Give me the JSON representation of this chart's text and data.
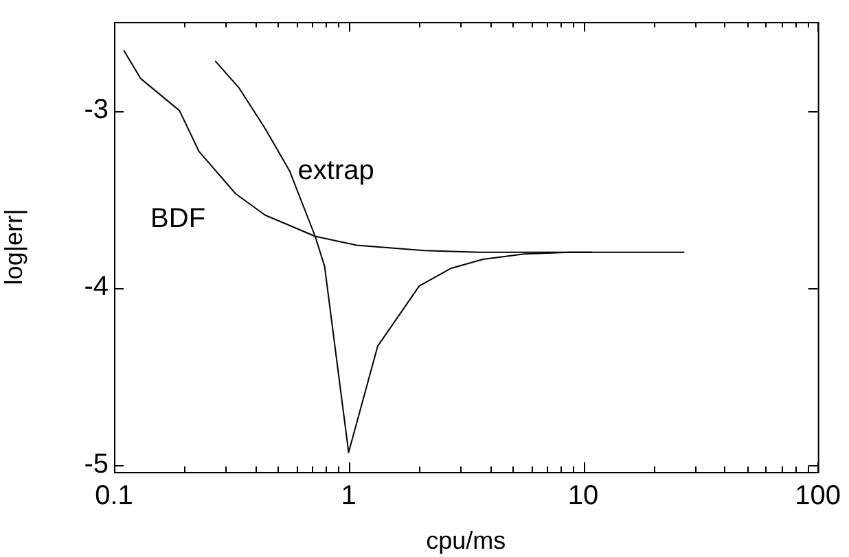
{
  "chart_data": {
    "type": "line",
    "xlabel": "cpu/ms",
    "ylabel": "log|err|",
    "log": "x",
    "grid": false,
    "legend": false,
    "marker": "none",
    "line_style": "solid",
    "xlim": [
      0.1,
      100
    ],
    "ylim": [
      -5.04,
      -2.5
    ],
    "xticks": [
      0.1,
      {
        "value": 0.2,
        "label": null
      },
      {
        "value": 0.3,
        "label": null
      },
      {
        "value": 0.4,
        "label": null
      },
      {
        "value": 0.5,
        "label": null
      },
      {
        "value": 0.6,
        "label": null
      },
      {
        "value": 0.7,
        "label": null
      },
      {
        "value": 0.8,
        "label": null
      },
      {
        "value": 0.9,
        "label": null
      },
      1,
      {
        "value": 2,
        "label": null
      },
      {
        "value": 3,
        "label": null
      },
      {
        "value": 4,
        "label": null
      },
      {
        "value": 5,
        "label": null
      },
      {
        "value": 6,
        "label": null
      },
      {
        "value": 7,
        "label": null
      },
      {
        "value": 8,
        "label": null
      },
      {
        "value": 9,
        "label": null
      },
      10,
      {
        "value": 20,
        "label": null
      },
      {
        "value": 30,
        "label": null
      },
      {
        "value": 40,
        "label": null
      },
      {
        "value": 50,
        "label": null
      },
      {
        "value": 60,
        "label": null
      },
      {
        "value": 70,
        "label": null
      },
      {
        "value": 80,
        "label": null
      },
      {
        "value": 90,
        "label": null
      },
      100
    ],
    "yticks": [
      -5,
      -4,
      -3
    ],
    "series": [
      {
        "name": "BDF",
        "color": "#000000",
        "x": [
          0.11,
          0.13,
          0.19,
          0.23,
          0.33,
          0.44,
          0.72,
          1.08,
          2.1,
          3.6,
          10.9
        ],
        "values": [
          -2.66,
          -2.82,
          -3.0,
          -3.23,
          -3.47,
          -3.59,
          -3.71,
          -3.76,
          -3.79,
          -3.8,
          -3.8
        ]
      },
      {
        "name": "extrap",
        "color": "#000000",
        "x": [
          0.27,
          0.34,
          0.44,
          0.56,
          0.72,
          0.79,
          1.0,
          1.33,
          2.0,
          2.74,
          3.74,
          5.6,
          8.8,
          27
        ],
        "values": [
          -2.72,
          -2.87,
          -3.1,
          -3.34,
          -3.71,
          -3.88,
          -4.93,
          -4.33,
          -3.99,
          -3.89,
          -3.84,
          -3.81,
          -3.8,
          -3.8
        ]
      }
    ]
  }
}
